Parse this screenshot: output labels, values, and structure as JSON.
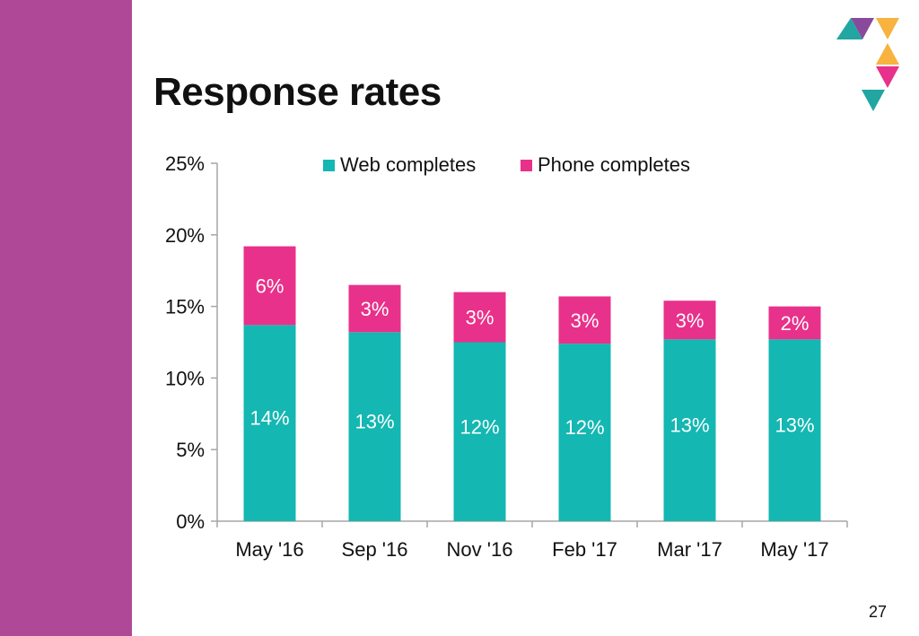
{
  "slide": {
    "title": "Response rates",
    "page_number": "27"
  },
  "colors": {
    "sidebar": "#ae4897",
    "web": "#14b7b2",
    "phone": "#e8318a",
    "logo_purple": "#8a4a9c",
    "logo_teal": "#21a6a2",
    "logo_orange": "#f7b23f",
    "logo_pink": "#e8318a"
  },
  "logo": {
    "icon": "triangle-mosaic-logo"
  },
  "chart_data": {
    "type": "bar",
    "stacked": true,
    "categories": [
      "May '16",
      "Sep '16",
      "Nov '16",
      "Feb '17",
      "Mar '17",
      "May '17"
    ],
    "series": [
      {
        "name": "Web completes",
        "values": [
          13.7,
          13.2,
          12.5,
          12.4,
          12.7,
          12.7
        ],
        "labels": [
          "14%",
          "13%",
          "12%",
          "12%",
          "13%",
          "13%"
        ]
      },
      {
        "name": "Phone completes",
        "values": [
          5.5,
          3.3,
          3.5,
          3.3,
          2.7,
          2.3
        ],
        "labels": [
          "6%",
          "3%",
          "3%",
          "3%",
          "3%",
          "2%"
        ]
      }
    ],
    "ylim": [
      0,
      25
    ],
    "yticks": [
      "0%",
      "5%",
      "10%",
      "15%",
      "20%",
      "25%"
    ],
    "ytick_values": [
      0,
      5,
      10,
      15,
      20,
      25
    ],
    "xlabel": "",
    "ylabel": "",
    "legend_position": "top",
    "grid": false
  }
}
